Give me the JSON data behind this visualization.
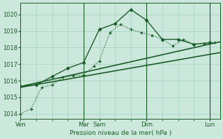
{
  "xlabel": "Pression niveau de la mer( hPa )",
  "bg_color": "#cce8dc",
  "grid_color": "#a8d4c4",
  "line_color": "#1a5c28",
  "ylim": [
    1013.7,
    1020.7
  ],
  "xlim": [
    0,
    76
  ],
  "xtick_positions": [
    0,
    24,
    30,
    48,
    72
  ],
  "xtick_labels": [
    "Ven",
    "Mar",
    "Sam",
    "Dim",
    "Lun"
  ],
  "ytick_values": [
    1014,
    1015,
    1016,
    1017,
    1018,
    1019,
    1020
  ],
  "ytick_labels": [
    "1014",
    "1015",
    "1016",
    "1017",
    "1018",
    "1019",
    "1020"
  ],
  "minor_xticks": [
    6,
    12,
    18,
    24,
    30,
    36,
    42,
    48,
    54,
    60,
    66,
    72
  ],
  "minor_yticks": [],
  "vsep_lines": [
    0,
    24,
    48,
    72
  ],
  "series": [
    {
      "x": [
        0,
        4,
        8,
        12,
        16,
        20,
        24,
        28,
        30,
        34,
        38,
        42,
        46,
        50,
        54,
        58,
        62,
        66,
        70,
        74
      ],
      "y": [
        1014.0,
        1014.3,
        1015.6,
        1015.75,
        1016.2,
        1016.3,
        1016.35,
        1016.9,
        1017.2,
        1018.9,
        1019.4,
        1019.1,
        1018.9,
        1018.75,
        1018.5,
        1018.1,
        1018.5,
        1018.2,
        1018.25,
        1018.3
      ],
      "linestyle": "dotted",
      "linewidth": 0.9,
      "marker": "+",
      "markersize": 3.5,
      "markeredgewidth": 1.0
    },
    {
      "x": [
        0,
        6,
        12,
        18,
        24,
        30,
        36,
        42,
        48,
        54,
        60,
        66,
        72
      ],
      "y": [
        1015.65,
        1015.75,
        1016.25,
        1016.75,
        1017.1,
        1019.1,
        1019.45,
        1020.3,
        1019.65,
        1018.5,
        1018.5,
        1018.2,
        1018.3
      ],
      "linestyle": "solid",
      "linewidth": 1.0,
      "marker": "D",
      "markersize": 2.5,
      "markeredgewidth": 0.5
    },
    {
      "x": [
        0,
        76
      ],
      "y": [
        1015.65,
        1018.35
      ],
      "linestyle": "solid",
      "linewidth": 1.2,
      "marker": null,
      "markersize": 0,
      "markeredgewidth": 0
    },
    {
      "x": [
        0,
        76
      ],
      "y": [
        1015.6,
        1017.7
      ],
      "linestyle": "solid",
      "linewidth": 1.2,
      "marker": null,
      "markersize": 0,
      "markeredgewidth": 0
    }
  ]
}
